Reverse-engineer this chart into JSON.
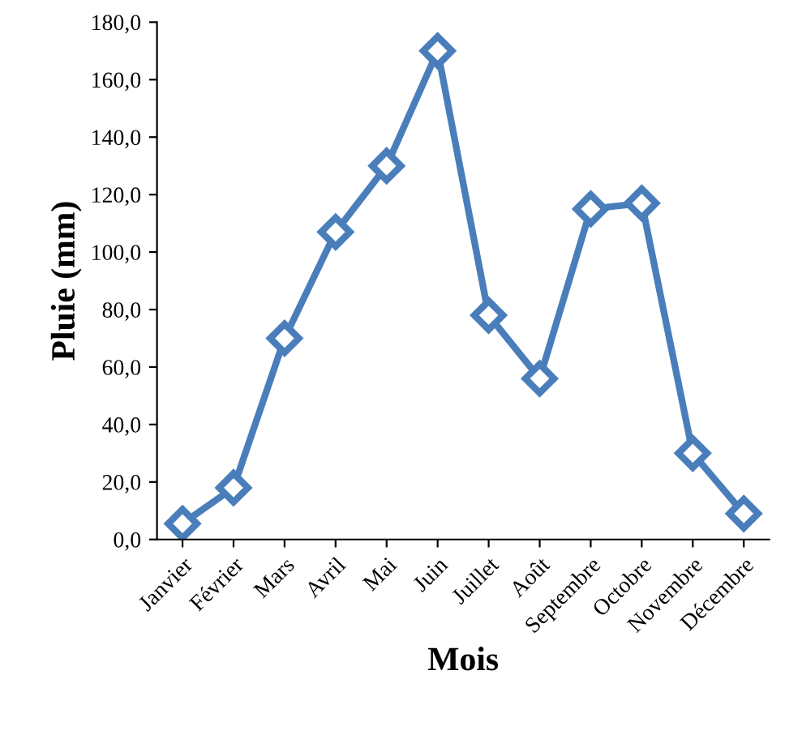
{
  "chart_data": {
    "type": "line",
    "xlabel": "Mois",
    "ylabel": "Pluie (mm)",
    "categories": [
      "Janvier",
      "Février",
      "Mars",
      "Avril",
      "Mai",
      "Juin",
      "Juillet",
      "Août",
      "Septembre",
      "Octobre",
      "Novembre",
      "Décembre"
    ],
    "series": [
      {
        "color": "#4a7ebb",
        "values": [
          5.5,
          18,
          70,
          107,
          130,
          170,
          78,
          56,
          115,
          117,
          30,
          9
        ]
      }
    ],
    "ylim": [
      0,
      180
    ],
    "yticks": [
      {
        "value": 0,
        "label": "0,0"
      },
      {
        "value": 20,
        "label": "20,0"
      },
      {
        "value": 40,
        "label": "40,0"
      },
      {
        "value": 60,
        "label": "60,0"
      },
      {
        "value": 80,
        "label": "80,0"
      },
      {
        "value": 100,
        "label": "100,0"
      },
      {
        "value": 120,
        "label": "120,0"
      },
      {
        "value": 140,
        "label": "140,0"
      },
      {
        "value": 160,
        "label": "160,0"
      },
      {
        "value": 180,
        "label": "180,0"
      }
    ],
    "grid": false,
    "legend": false,
    "marker": "diamond",
    "line_style": "solid"
  }
}
